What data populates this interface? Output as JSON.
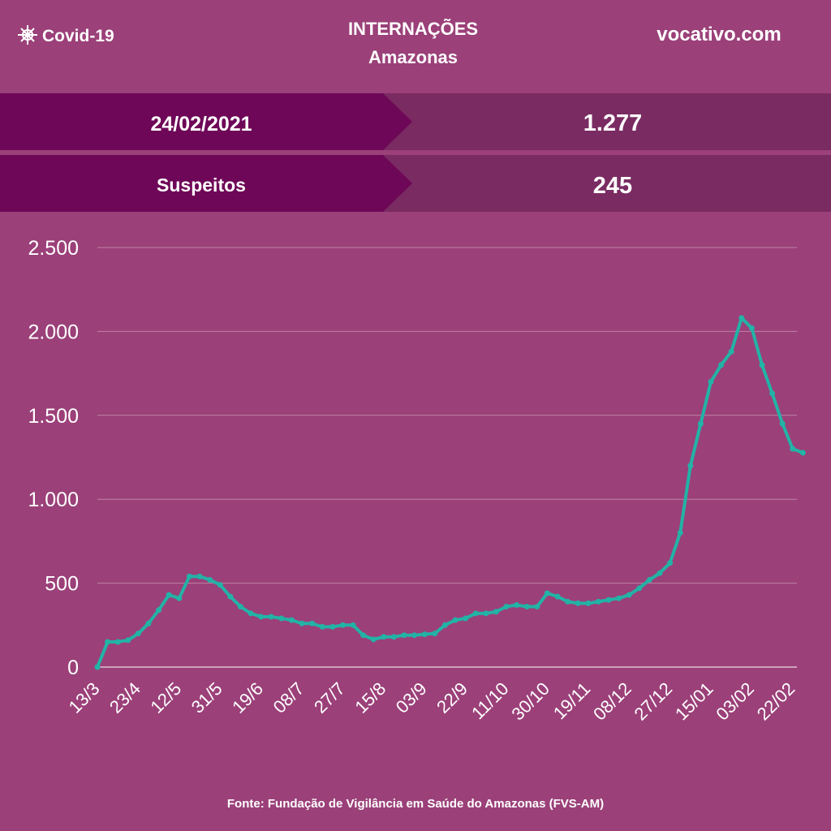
{
  "header": {
    "brand": "Covid-19",
    "title": "INTERNAÇÕES",
    "subtitle": "Amazonas",
    "site": "vocativo.com"
  },
  "table": {
    "rows": [
      [
        "24/02/2021",
        "1.277"
      ],
      [
        "Suspeitos",
        "245"
      ]
    ]
  },
  "source": "Fonte: Fundação de Vigilância em Saúde do Amazonas (FVS-AM)",
  "chart_data": {
    "type": "line",
    "color": "#22b3a6",
    "grid": true,
    "categories": [
      "13/3",
      null,
      null,
      null,
      "23/4",
      null,
      null,
      null,
      "12/5",
      null,
      null,
      null,
      "31/5",
      null,
      null,
      null,
      "19/6",
      null,
      null,
      null,
      "08/7",
      null,
      null,
      null,
      "27/7",
      null,
      null,
      null,
      "15/8",
      null,
      null,
      null,
      "03/9",
      null,
      null,
      null,
      "22/9",
      null,
      null,
      null,
      "11/10",
      null,
      null,
      null,
      "30/10",
      null,
      null,
      null,
      "19/11",
      null,
      null,
      null,
      "08/12",
      null,
      null,
      null,
      "27/12",
      null,
      null,
      null,
      "15/01",
      null,
      null,
      null,
      "03/02",
      null,
      null,
      null,
      "22/02",
      null
    ],
    "values": [
      0,
      150,
      150,
      160,
      200,
      260,
      340,
      430,
      410,
      540,
      540,
      520,
      490,
      420,
      360,
      320,
      300,
      300,
      290,
      280,
      260,
      260,
      240,
      240,
      250,
      250,
      190,
      165,
      180,
      180,
      190,
      190,
      195,
      200,
      250,
      280,
      290,
      320,
      320,
      330,
      360,
      370,
      360,
      360,
      440,
      420,
      390,
      380,
      380,
      390,
      400,
      410,
      430,
      470,
      520,
      560,
      620,
      800,
      1200,
      1450,
      1700,
      1800,
      1880,
      2080,
      2020,
      1800,
      1630,
      1450,
      1300,
      1277
    ],
    "ylim": [
      0,
      2500
    ],
    "yticks": [
      0,
      500,
      {
        "value": 1000,
        "label": "1.000"
      },
      {
        "value": 1500,
        "label": "1.500"
      },
      {
        "value": 2000,
        "label": "2.000"
      },
      {
        "value": 2500,
        "label": "2.500"
      }
    ]
  }
}
